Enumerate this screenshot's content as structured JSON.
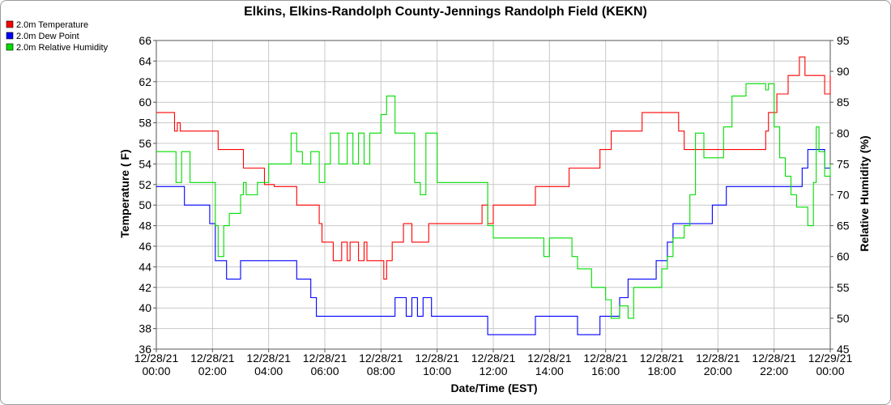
{
  "chart_data": {
    "type": "line",
    "title": "Elkins, Elkins-Randolph County-Jennings Randolph Field (KEKN)",
    "xlabel": "Date/Time (EST)",
    "ylabel": "Temperature ( F)",
    "y2label": "Relative Humidity (%)",
    "ylim": [
      36,
      66
    ],
    "y2lim": [
      45,
      95
    ],
    "yticks": [
      36,
      38,
      40,
      42,
      44,
      46,
      48,
      50,
      52,
      54,
      56,
      58,
      60,
      62,
      64,
      66
    ],
    "y2ticks": [
      45,
      50,
      55,
      60,
      65,
      70,
      75,
      80,
      85,
      90,
      95
    ],
    "xlim": [
      0,
      24
    ],
    "xticks": [
      {
        "hour": 0,
        "date": "12/28/21",
        "time": "00:00"
      },
      {
        "hour": 2,
        "date": "12/28/21",
        "time": "02:00"
      },
      {
        "hour": 4,
        "date": "12/28/21",
        "time": "04:00"
      },
      {
        "hour": 6,
        "date": "12/28/21",
        "time": "06:00"
      },
      {
        "hour": 8,
        "date": "12/28/21",
        "time": "08:00"
      },
      {
        "hour": 10,
        "date": "12/28/21",
        "time": "10:00"
      },
      {
        "hour": 12,
        "date": "12/28/21",
        "time": "12:00"
      },
      {
        "hour": 14,
        "date": "12/28/21",
        "time": "14:00"
      },
      {
        "hour": 16,
        "date": "12/28/21",
        "time": "16:00"
      },
      {
        "hour": 18,
        "date": "12/28/21",
        "time": "18:00"
      },
      {
        "hour": 20,
        "date": "12/28/21",
        "time": "20:00"
      },
      {
        "hour": 22,
        "date": "12/28/21",
        "time": "22:00"
      },
      {
        "hour": 24,
        "date": "12/29/21",
        "time": "00:00"
      }
    ],
    "grid": true,
    "legend_position": "top-left",
    "series": [
      {
        "name": "2.0m Temperature",
        "color": "#ff0000",
        "axis": "left",
        "x": [
          0,
          0.55,
          0.65,
          0.75,
          0.85,
          1.0,
          1.9,
          2.1,
          2.2,
          2.3,
          2.8,
          3.1,
          3.3,
          3.5,
          3.7,
          3.85,
          4.0,
          4.2,
          4.4,
          4.6,
          4.9,
          5.0,
          5.5,
          5.8,
          5.9,
          6.0,
          6.2,
          6.3,
          6.6,
          6.8,
          6.9,
          7.0,
          7.2,
          7.4,
          7.5,
          7.6,
          7.8,
          8.0,
          8.1,
          8.2,
          8.4,
          8.5,
          8.7,
          8.8,
          9.0,
          9.1,
          9.3,
          9.4,
          9.7,
          10.0,
          10.5,
          11.0,
          11.5,
          11.6,
          11.8,
          12.0,
          12.5,
          13.0,
          13.5,
          13.8,
          14.0,
          14.5,
          14.7,
          15.0,
          15.2,
          15.5,
          15.8,
          16.0,
          16.2,
          16.3,
          16.5,
          17.0,
          17.3,
          17.8,
          18.0,
          18.3,
          18.6,
          18.8,
          19.0,
          19.1,
          19.3,
          19.5,
          19.8,
          20.0,
          20.5,
          21.0,
          21.5,
          21.7,
          21.8,
          21.9,
          22.1,
          22.3,
          22.5,
          22.8,
          22.9,
          23.0,
          23.1,
          23.3,
          23.5,
          23.7,
          23.8,
          24.0
        ],
        "values": [
          59.0,
          59.0,
          57.2,
          58.0,
          57.2,
          57.2,
          57.2,
          57.2,
          55.4,
          55.4,
          55.4,
          53.6,
          53.6,
          53.6,
          53.6,
          52.0,
          52.0,
          51.8,
          51.8,
          51.8,
          51.8,
          50.0,
          50.0,
          48.2,
          46.4,
          46.4,
          46.4,
          44.6,
          46.4,
          44.6,
          46.4,
          46.4,
          44.6,
          46.4,
          44.6,
          44.6,
          44.6,
          44.6,
          42.8,
          44.6,
          46.4,
          46.4,
          46.4,
          48.2,
          48.2,
          46.4,
          46.4,
          46.4,
          48.2,
          48.2,
          48.2,
          48.2,
          48.2,
          50.0,
          48.2,
          50.0,
          50.0,
          50.0,
          51.8,
          51.8,
          51.8,
          51.8,
          53.6,
          53.6,
          53.6,
          53.6,
          55.4,
          55.4,
          57.2,
          57.2,
          57.2,
          57.2,
          59.0,
          59.0,
          59.0,
          59.0,
          57.2,
          55.4,
          55.4,
          55.4,
          55.4,
          55.4,
          55.4,
          55.4,
          55.4,
          55.4,
          55.4,
          57.2,
          59.0,
          59.0,
          60.8,
          60.8,
          62.6,
          62.6,
          64.4,
          64.4,
          62.6,
          62.6,
          62.6,
          62.6,
          60.8,
          62.6
        ]
      },
      {
        "name": "2.0m Dew Point",
        "color": "#0000ff",
        "axis": "left",
        "x": [
          0,
          0.6,
          1.0,
          1.2,
          1.3,
          1.4,
          1.9,
          2.0,
          2.1,
          2.5,
          2.9,
          3.0,
          3.3,
          3.6,
          3.9,
          4.2,
          4.5,
          4.8,
          5.0,
          5.3,
          5.5,
          5.7,
          5.9,
          6.2,
          6.5,
          7.0,
          7.5,
          7.7,
          8.0,
          8.3,
          8.5,
          8.7,
          8.9,
          9.1,
          9.3,
          9.5,
          9.8,
          10.0,
          10.5,
          11.0,
          11.5,
          11.8,
          12.0,
          12.3,
          12.5,
          13.0,
          13.5,
          13.8,
          14.0,
          14.5,
          15.0,
          15.5,
          15.8,
          16.0,
          16.3,
          16.5,
          16.8,
          17.0,
          17.5,
          17.8,
          18.0,
          18.2,
          18.4,
          18.6,
          18.8,
          19.0,
          19.5,
          19.8,
          20.0,
          20.3,
          20.5,
          21.0,
          21.5,
          22.0,
          22.5,
          22.8,
          23.0,
          23.2,
          23.5,
          23.8,
          24.0
        ],
        "values": [
          51.8,
          51.8,
          50.0,
          50.0,
          50.0,
          50.0,
          48.2,
          48.2,
          44.6,
          42.8,
          42.8,
          44.6,
          44.6,
          44.6,
          44.6,
          44.6,
          44.6,
          44.6,
          42.8,
          42.8,
          41.0,
          39.2,
          39.2,
          39.2,
          39.2,
          39.2,
          39.2,
          39.2,
          39.2,
          39.2,
          41.0,
          41.0,
          39.2,
          41.0,
          39.2,
          41.0,
          39.2,
          39.2,
          39.2,
          39.2,
          39.2,
          37.4,
          37.4,
          37.4,
          37.4,
          37.4,
          39.2,
          39.2,
          39.2,
          39.2,
          37.4,
          37.4,
          39.2,
          39.2,
          39.2,
          41.0,
          42.8,
          42.8,
          42.8,
          44.6,
          44.6,
          46.4,
          48.2,
          48.2,
          48.2,
          48.2,
          48.2,
          50.0,
          50.0,
          51.8,
          51.8,
          51.8,
          51.8,
          51.8,
          51.8,
          51.8,
          53.6,
          55.4,
          55.4,
          53.6,
          53.6
        ]
      },
      {
        "name": "2.0m Relative Humidity",
        "color": "#00dd00",
        "axis": "right",
        "x": [
          0,
          0.5,
          0.7,
          0.9,
          1.0,
          1.2,
          1.5,
          1.8,
          2.0,
          2.1,
          2.2,
          2.4,
          2.6,
          2.8,
          3.0,
          3.1,
          3.2,
          3.4,
          3.6,
          3.8,
          4.0,
          4.2,
          4.5,
          4.8,
          5.0,
          5.2,
          5.5,
          5.8,
          6.0,
          6.2,
          6.5,
          6.8,
          7.0,
          7.2,
          7.4,
          7.6,
          7.8,
          8.0,
          8.2,
          8.5,
          8.8,
          9.0,
          9.2,
          9.4,
          9.6,
          9.8,
          10.0,
          10.5,
          11.0,
          11.5,
          11.7,
          11.8,
          12.0,
          12.5,
          13.0,
          13.5,
          13.8,
          14.0,
          14.5,
          14.8,
          15.0,
          15.5,
          15.7,
          16.0,
          16.2,
          16.5,
          16.8,
          17.0,
          17.5,
          17.8,
          18.0,
          18.2,
          18.4,
          18.6,
          18.8,
          19.0,
          19.2,
          19.5,
          19.8,
          20.0,
          20.2,
          20.5,
          20.8,
          21.0,
          21.5,
          21.7,
          21.8,
          22.0,
          22.2,
          22.4,
          22.6,
          22.8,
          23.0,
          23.2,
          23.4,
          23.5,
          23.6,
          23.8,
          24.0
        ],
        "values": [
          77,
          77,
          72,
          77,
          77,
          72,
          72,
          72,
          72,
          65,
          60,
          65,
          67,
          67,
          70,
          72,
          70,
          70,
          72,
          72,
          75,
          75,
          75,
          80,
          77,
          75,
          77,
          72,
          75,
          80,
          75,
          80,
          75,
          80,
          75,
          80,
          80,
          83,
          86,
          80,
          80,
          80,
          72,
          70,
          80,
          80,
          72,
          72,
          72,
          72,
          72,
          65,
          63,
          63,
          63,
          63,
          60,
          63,
          63,
          60,
          58,
          55,
          55,
          53,
          50,
          52,
          50,
          55,
          55,
          55,
          58,
          60,
          63,
          63,
          65,
          70,
          80,
          76,
          76,
          76,
          81,
          86,
          86,
          88,
          88,
          87,
          88,
          81,
          76,
          73,
          70,
          68,
          68,
          65,
          72,
          81,
          77,
          73,
          75
        ]
      }
    ]
  }
}
